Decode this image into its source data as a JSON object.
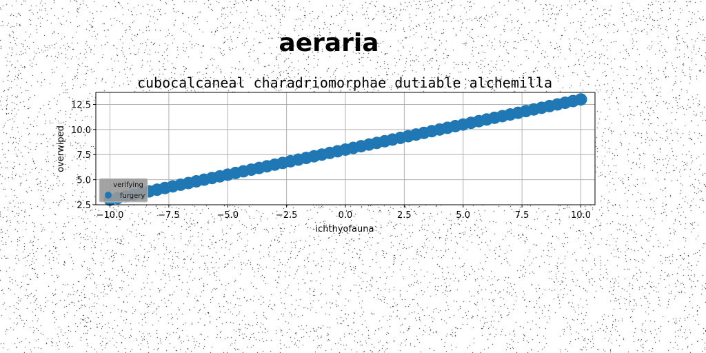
{
  "chart_data": {
    "type": "scatter",
    "suptitle": "aeraria",
    "title": "cubocalcaneal charadriomorphae dutiable alchemilla",
    "xlabel": "ichthyofauna",
    "ylabel": "overwiped",
    "xlim": [
      -10.6,
      10.6
    ],
    "ylim": [
      2.5,
      13.7
    ],
    "xticks": [
      -10.0,
      -7.5,
      -5.0,
      -2.5,
      0.0,
      2.5,
      5.0,
      7.5,
      10.0
    ],
    "xtick_labels": [
      "−10.0",
      "−7.5",
      "−5.0",
      "−2.5",
      "0.0",
      "2.5",
      "5.0",
      "7.5",
      "10.0"
    ],
    "yticks": [
      2.5,
      5.0,
      7.5,
      10.0,
      12.5
    ],
    "ytick_labels": [
      "2.5",
      "5.0",
      "7.5",
      "10.0",
      "12.5"
    ],
    "grid": true,
    "legend": {
      "title": "verifying",
      "placement": "lower-left",
      "entries": [
        "furgery"
      ]
    },
    "series": [
      {
        "name": "furgery",
        "color": "#1f77b4",
        "x_start": -10.0,
        "x_end": 10.0,
        "n_points": 61,
        "y_start": 3.0,
        "y_end": 13.0
      }
    ]
  }
}
